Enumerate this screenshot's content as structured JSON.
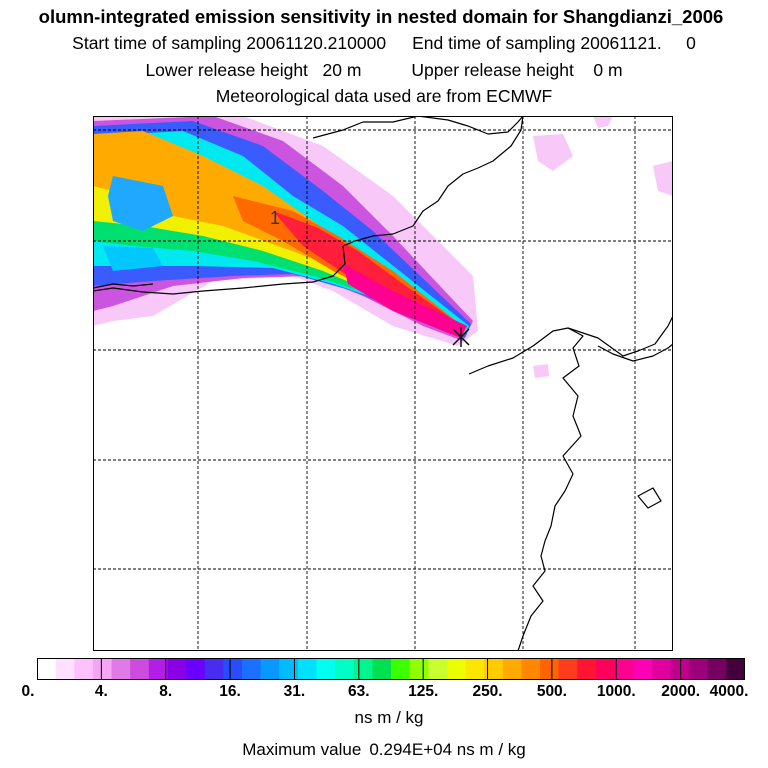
{
  "title": {
    "main": "olumn-integrated emission sensitivity in nested domain for Shangdianzi_2006",
    "start_label": "Start time of sampling 20061120.210000",
    "end_label": "End time of sampling 20061121.",
    "end_value": "0",
    "lower_label": "Lower release height",
    "lower_value": "20 m",
    "upper_label": "Upper release height",
    "upper_value": "0 m",
    "met_line": "Meteorological data used are from ECMWF"
  },
  "map": {
    "contour_label": "1",
    "release_marker": "×"
  },
  "colorbar": {
    "tick_labels": [
      "0.",
      "4.",
      "8.",
      "16.",
      "31.",
      "63.",
      "125.",
      "250.",
      "500.",
      "1000.",
      "2000.",
      "4000."
    ],
    "colors": [
      "#ffffff",
      "#ffe0ff",
      "#ffc0ff",
      "#f4a6f4",
      "#e07ae8",
      "#cc4cdd",
      "#b21ee6",
      "#8a00e6",
      "#6a00ff",
      "#4a2cf0",
      "#2a4cff",
      "#1c70ff",
      "#0898ff",
      "#00bcff",
      "#00e0ff",
      "#00ffee",
      "#00ffc4",
      "#00f58c",
      "#00e050",
      "#3cff00",
      "#90ff00",
      "#c8ff30",
      "#ecff00",
      "#ffe600",
      "#ffcc00",
      "#ffaa00",
      "#ff8800",
      "#ff6400",
      "#ff3c1e",
      "#ff1432",
      "#ff005a",
      "#ff0090",
      "#ff00b4",
      "#e000a0",
      "#c0008c",
      "#9c007a",
      "#760060",
      "#44003c"
    ],
    "units": "ns m / kg",
    "max_label": "Maximum value",
    "max_value": "0.294E+04 ns m / kg"
  }
}
